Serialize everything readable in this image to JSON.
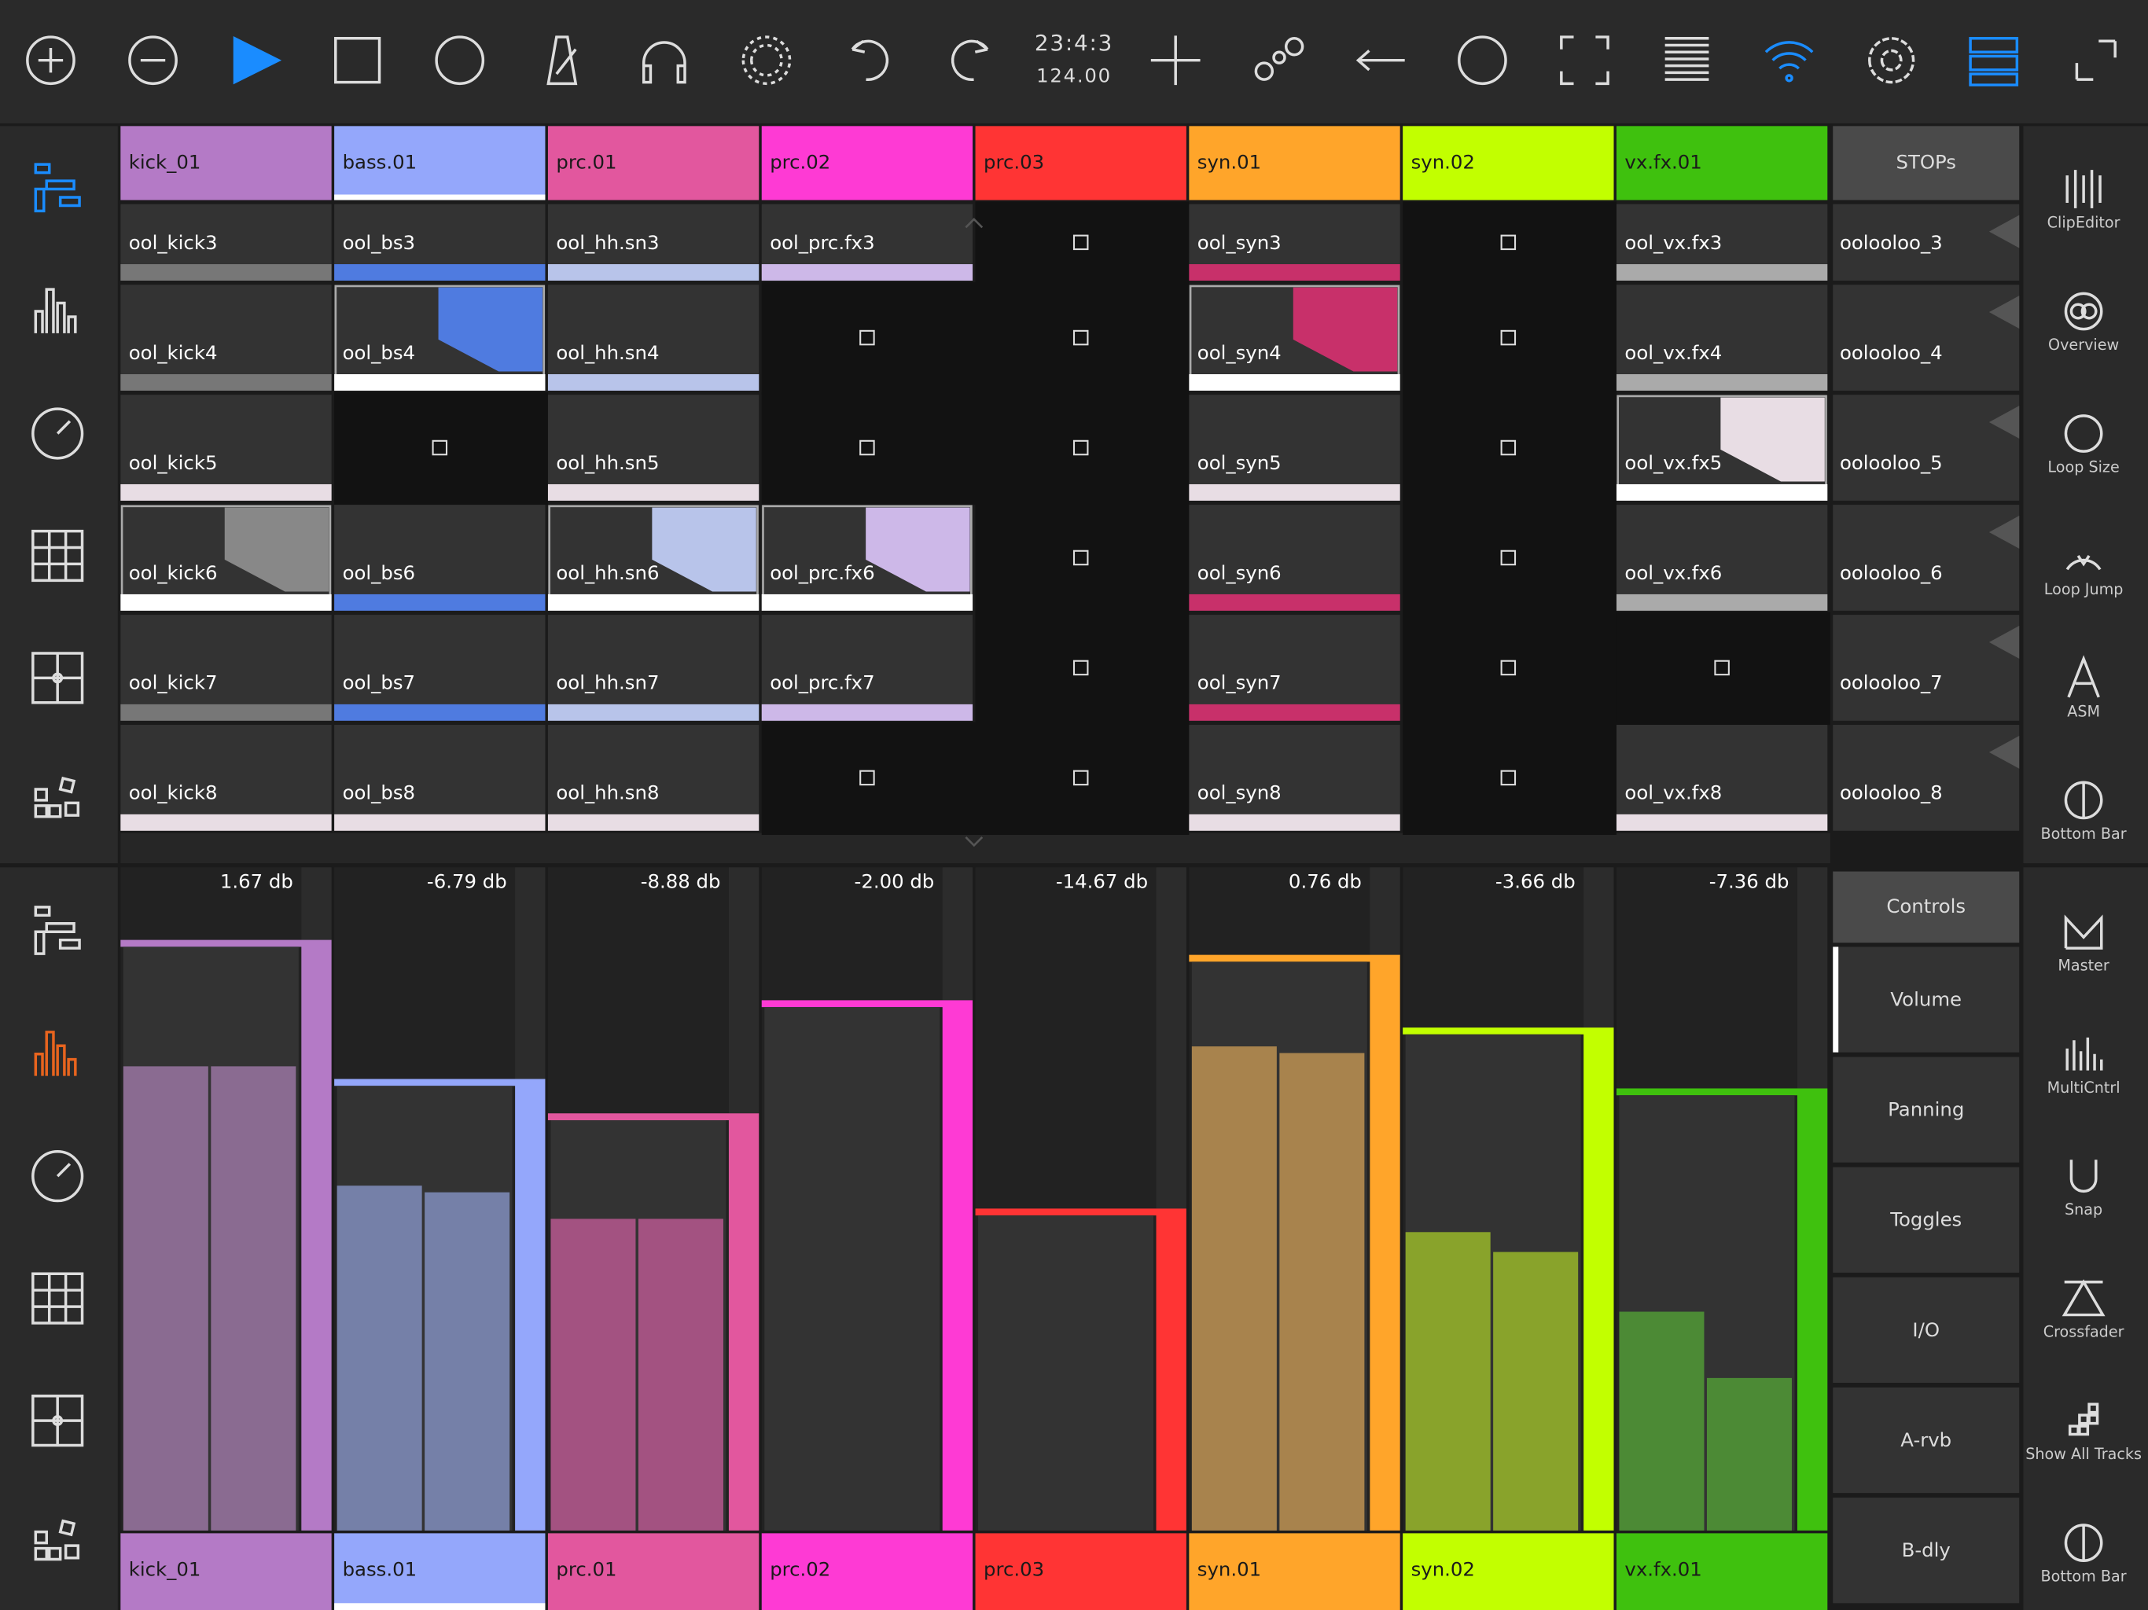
{
  "toolbar": {
    "time": "23:4:3",
    "tempo": "124.00"
  },
  "selected_track": 1,
  "tracks": [
    {
      "name": "kick_01",
      "color": "#b47ac6",
      "meter_color": "#8a6b91",
      "db": {
        "value": 1.67,
        "label": "1.67 db"
      },
      "meters": [
        0.7,
        0.7
      ]
    },
    {
      "name": "bass.01",
      "color": "#94a7fb",
      "meter_color": "#7580a8",
      "db": {
        "value": -6.79,
        "label": "-6.79 db"
      },
      "meters": [
        0.52,
        0.51
      ]
    },
    {
      "name": "prc.01",
      "color": "#e2579e",
      "meter_color": "#a35281",
      "db": {
        "value": -8.88,
        "label": "-8.88 db"
      },
      "meters": [
        0.47,
        0.47
      ]
    },
    {
      "name": "prc.02",
      "color": "#fe3ad4",
      "meter_color": "#a3428c",
      "db": {
        "value": -2.0,
        "label": "-2.00 db"
      },
      "meters": [
        0,
        0
      ]
    },
    {
      "name": "prc.03",
      "color": "#ff3434",
      "meter_color": "#a33a3a",
      "db": {
        "value": -14.67,
        "label": "-14.67 db"
      },
      "meters": [
        0,
        0
      ]
    },
    {
      "name": "syn.01",
      "color": "#ffa52a",
      "meter_color": "#a8834d",
      "db": {
        "value": 0.76,
        "label": "0.76 db"
      },
      "meters": [
        0.73,
        0.72
      ]
    },
    {
      "name": "syn.02",
      "color": "#c2ff00",
      "meter_color": "#89a32b",
      "db": {
        "value": -3.66,
        "label": "-3.66 db"
      },
      "meters": [
        0.45,
        0.42
      ]
    },
    {
      "name": "vx.fx.01",
      "color": "#3fc10e",
      "meter_color": "#4c8a35",
      "db": {
        "value": -7.36,
        "label": "-7.36 db"
      },
      "meters": [
        0.33,
        0.23
      ]
    }
  ],
  "stops_header": "STOPs",
  "clip_rows": [
    {
      "stop": "oolooloo_3",
      "clips": [
        {
          "name": "ool_kick3",
          "color": "#777777"
        },
        {
          "name": "ool_bs3",
          "color": "#4f7be0"
        },
        {
          "name": "ool_hh.sn3",
          "color": "#b8c4ea"
        },
        {
          "name": "ool_prc.fx3",
          "color": "#cdb8e8"
        },
        null,
        {
          "name": "ool_syn3",
          "color": "#c8306a"
        },
        null,
        {
          "name": "ool_vx.fx3",
          "color": "#aaaaaa"
        }
      ]
    },
    {
      "stop": "oolooloo_4",
      "clips": [
        {
          "name": "ool_kick4",
          "color": "#777777"
        },
        {
          "name": "ool_bs4",
          "color": "#ffffff",
          "playing_color": "#4f7be0"
        },
        {
          "name": "ool_hh.sn4",
          "color": "#b8c4ea"
        },
        null,
        null,
        {
          "name": "ool_syn4",
          "color": "#ffffff",
          "playing_color": "#c8306a"
        },
        null,
        {
          "name": "ool_vx.fx4",
          "color": "#aaaaaa"
        }
      ]
    },
    {
      "stop": "oolooloo_5",
      "clips": [
        {
          "name": "ool_kick5",
          "color": "#e8dde4"
        },
        null,
        {
          "name": "ool_hh.sn5",
          "color": "#e8dde4"
        },
        null,
        null,
        {
          "name": "ool_syn5",
          "color": "#e8dde4"
        },
        null,
        {
          "name": "ool_vx.fx5",
          "color": "#ffffff",
          "playing_color": "#e8dde4"
        }
      ]
    },
    {
      "stop": "oolooloo_6",
      "clips": [
        {
          "name": "ool_kick6",
          "color": "#ffffff",
          "playing_color": "#888888"
        },
        {
          "name": "ool_bs6",
          "color": "#4f7be0"
        },
        {
          "name": "ool_hh.sn6",
          "color": "#ffffff",
          "playing_color": "#b8c4ea"
        },
        {
          "name": "ool_prc.fx6",
          "color": "#ffffff",
          "playing_color": "#cdb8e8"
        },
        null,
        {
          "name": "ool_syn6",
          "color": "#c8306a"
        },
        null,
        {
          "name": "ool_vx.fx6",
          "color": "#aaaaaa"
        }
      ]
    },
    {
      "stop": "oolooloo_7",
      "clips": [
        {
          "name": "ool_kick7",
          "color": "#777777"
        },
        {
          "name": "ool_bs7",
          "color": "#4f7be0"
        },
        {
          "name": "ool_hh.sn7",
          "color": "#b8c4ea"
        },
        {
          "name": "ool_prc.fx7",
          "color": "#cdb8e8"
        },
        null,
        {
          "name": "ool_syn7",
          "color": "#c8306a"
        },
        null,
        null
      ]
    },
    {
      "stop": "oolooloo_8",
      "clips": [
        {
          "name": "ool_kick8",
          "color": "#e8dde4"
        },
        {
          "name": "ool_bs8",
          "color": "#e8dde4"
        },
        {
          "name": "ool_hh.sn8",
          "color": "#e8dde4"
        },
        null,
        null,
        {
          "name": "ool_syn8",
          "color": "#e8dde4"
        },
        null,
        {
          "name": "ool_vx.fx8",
          "color": "#e8dde4"
        }
      ]
    }
  ],
  "right_sidebar_top": [
    "ClipEditor",
    "Overview",
    "Loop Size",
    "Loop Jump",
    "ASM",
    "Bottom Bar"
  ],
  "right_sidebar_bottom": [
    "Master",
    "MultiCntrl",
    "Snap",
    "Crossfader",
    "Show All Tracks",
    "Bottom Bar"
  ],
  "controls": {
    "title": "Controls",
    "selected": 0,
    "items": [
      "Volume",
      "Panning",
      "Toggles",
      "I/O",
      "A-rvb",
      "B-dly"
    ]
  }
}
